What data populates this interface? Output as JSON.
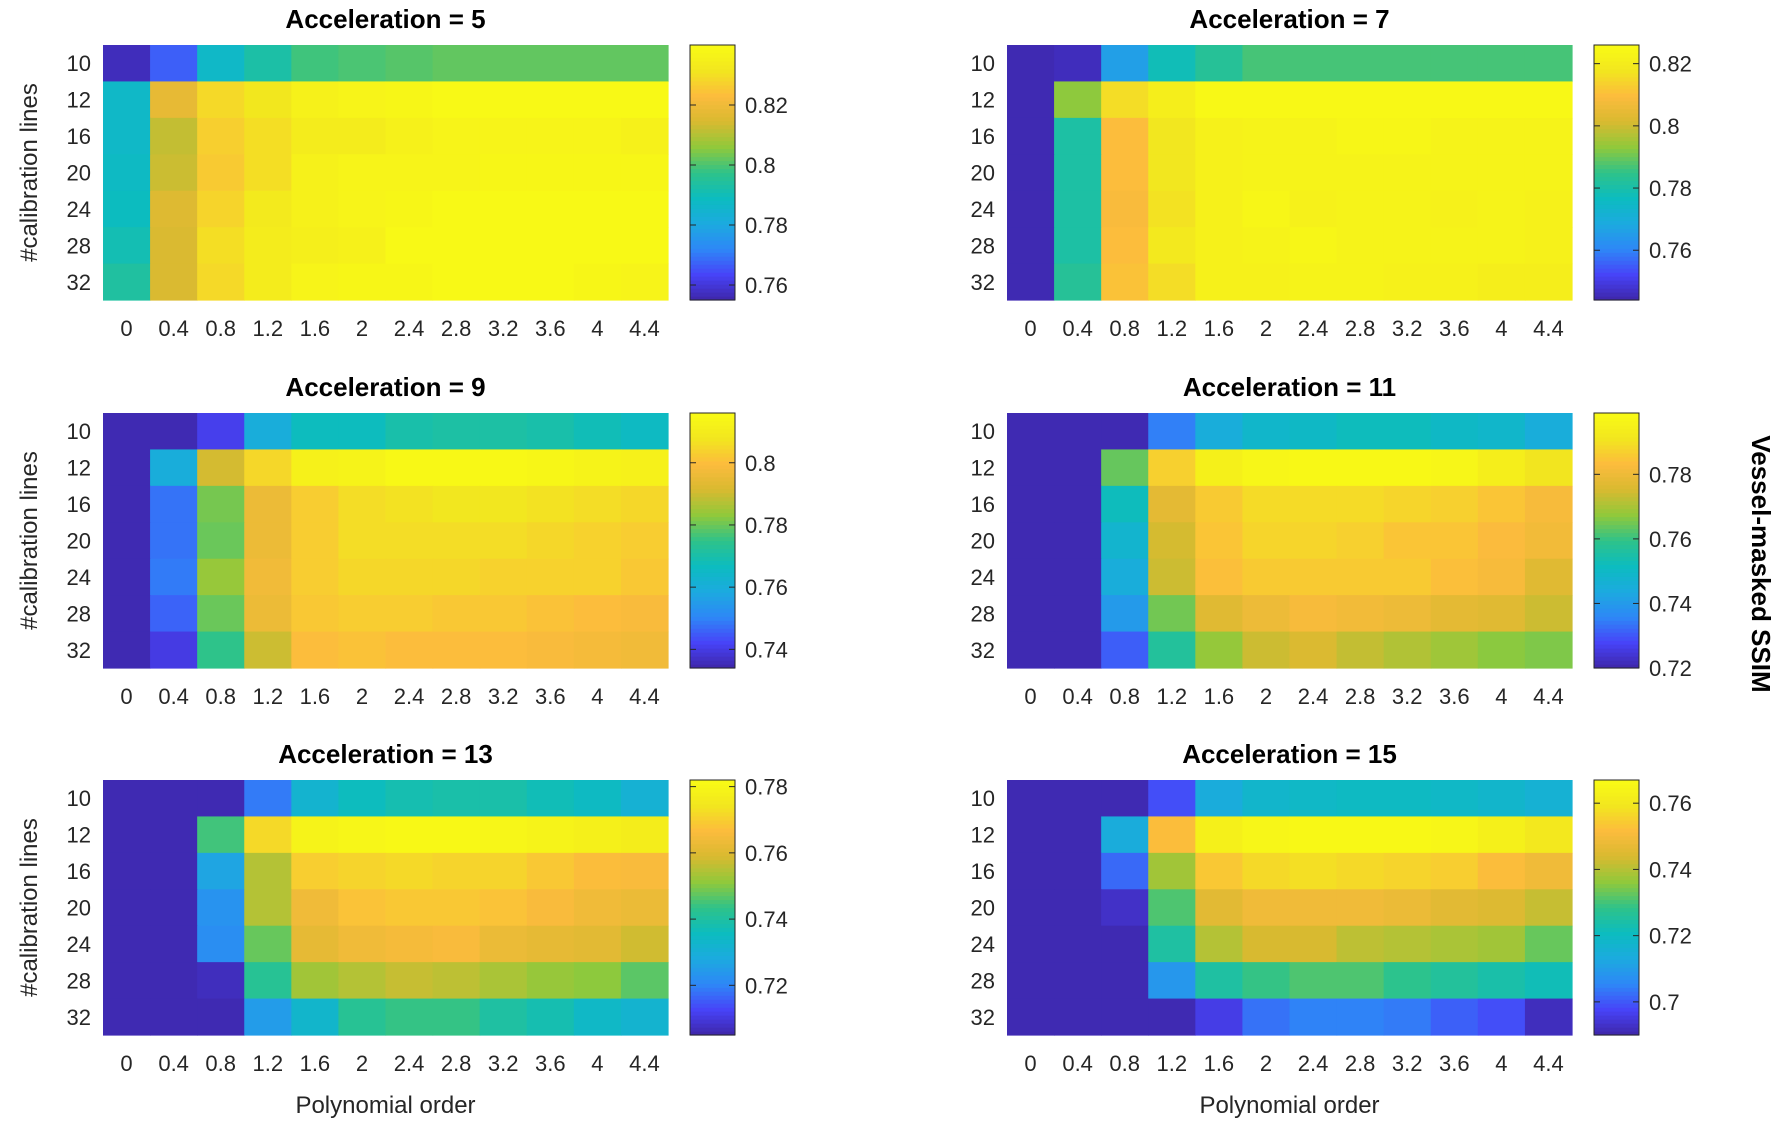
{
  "figure": {
    "colorbar_label": "Vessel-masked SSIM",
    "colormap": [
      "#3e26a8",
      "#4743f8",
      "#2e87f7",
      "#1caadf",
      "#0cbcbf",
      "#2ec38a",
      "#90c93b",
      "#d8ba30",
      "#fcbb3d",
      "#f2e61f",
      "#f9fb15"
    ]
  },
  "chart_data": [
    {
      "type": "heatmap",
      "title": "Acceleration = 5",
      "xlabel": "",
      "ylabel": "#calibration lines",
      "x_ticks": [
        "0",
        "0.4",
        "0.8",
        "1.2",
        "1.6",
        "2",
        "2.4",
        "2.8",
        "3.2",
        "3.6",
        "4",
        "4.4"
      ],
      "y_ticks": [
        "10",
        "12",
        "16",
        "20",
        "24",
        "28",
        "32"
      ],
      "clim": [
        0.755,
        0.84
      ],
      "colorbar_ticks": [
        0.76,
        0.78,
        0.8,
        0.82
      ],
      "colorbar_tick_labels": [
        "0.76",
        "0.78",
        "0.8",
        "0.82"
      ],
      "values": [
        [
          0.757,
          0.767,
          0.787,
          0.793,
          0.799,
          0.8,
          0.801,
          0.802,
          0.802,
          0.802,
          0.802,
          0.802
        ],
        [
          0.787,
          0.818,
          0.829,
          0.832,
          0.836,
          0.837,
          0.838,
          0.839,
          0.839,
          0.839,
          0.839,
          0.839
        ],
        [
          0.787,
          0.812,
          0.827,
          0.83,
          0.834,
          0.834,
          0.836,
          0.837,
          0.837,
          0.837,
          0.837,
          0.836
        ],
        [
          0.788,
          0.813,
          0.826,
          0.83,
          0.836,
          0.837,
          0.837,
          0.837,
          0.838,
          0.838,
          0.838,
          0.838
        ],
        [
          0.789,
          0.816,
          0.828,
          0.833,
          0.836,
          0.837,
          0.838,
          0.839,
          0.839,
          0.839,
          0.839,
          0.839
        ],
        [
          0.791,
          0.815,
          0.83,
          0.834,
          0.835,
          0.836,
          0.839,
          0.839,
          0.839,
          0.839,
          0.839,
          0.839
        ],
        [
          0.794,
          0.815,
          0.829,
          0.834,
          0.837,
          0.838,
          0.838,
          0.839,
          0.839,
          0.839,
          0.838,
          0.837
        ]
      ]
    },
    {
      "type": "heatmap",
      "title": "Acceleration = 7",
      "xlabel": "",
      "ylabel": "",
      "x_ticks": [
        "0",
        "0.4",
        "0.8",
        "1.2",
        "1.6",
        "2",
        "2.4",
        "2.8",
        "3.2",
        "3.6",
        "4",
        "4.4"
      ],
      "y_ticks": [
        "10",
        "12",
        "16",
        "20",
        "24",
        "28",
        "32"
      ],
      "clim": [
        0.744,
        0.826
      ],
      "colorbar_ticks": [
        0.76,
        0.78,
        0.8,
        0.82
      ],
      "colorbar_tick_labels": [
        "0.76",
        "0.78",
        "0.8",
        "0.82"
      ],
      "values": [
        [
          0.745,
          0.746,
          0.766,
          0.778,
          0.783,
          0.787,
          0.787,
          0.787,
          0.787,
          0.787,
          0.787,
          0.787
        ],
        [
          0.745,
          0.793,
          0.816,
          0.821,
          0.825,
          0.825,
          0.825,
          0.825,
          0.825,
          0.825,
          0.825,
          0.825
        ],
        [
          0.745,
          0.781,
          0.81,
          0.818,
          0.822,
          0.823,
          0.823,
          0.824,
          0.824,
          0.823,
          0.823,
          0.823
        ],
        [
          0.745,
          0.781,
          0.81,
          0.818,
          0.822,
          0.823,
          0.823,
          0.823,
          0.823,
          0.823,
          0.823,
          0.823
        ],
        [
          0.745,
          0.781,
          0.809,
          0.817,
          0.822,
          0.824,
          0.822,
          0.823,
          0.823,
          0.822,
          0.823,
          0.822
        ],
        [
          0.745,
          0.781,
          0.81,
          0.819,
          0.822,
          0.823,
          0.824,
          0.823,
          0.823,
          0.823,
          0.823,
          0.822
        ],
        [
          0.745,
          0.783,
          0.811,
          0.816,
          0.822,
          0.822,
          0.823,
          0.823,
          0.822,
          0.822,
          0.821,
          0.821
        ]
      ]
    },
    {
      "type": "heatmap",
      "title": "Acceleration = 9",
      "xlabel": "",
      "ylabel": "#calibration lines",
      "x_ticks": [
        "0",
        "0.4",
        "0.8",
        "1.2",
        "1.6",
        "2",
        "2.4",
        "2.8",
        "3.2",
        "3.6",
        "4",
        "4.4"
      ],
      "y_ticks": [
        "10",
        "12",
        "16",
        "20",
        "24",
        "28",
        "32"
      ],
      "clim": [
        0.734,
        0.816
      ],
      "colorbar_ticks": [
        0.74,
        0.76,
        0.78,
        0.8
      ],
      "colorbar_tick_labels": [
        "0.74",
        "0.76",
        "0.78",
        "0.8"
      ],
      "values": [
        [
          0.735,
          0.735,
          0.741,
          0.76,
          0.767,
          0.767,
          0.77,
          0.771,
          0.771,
          0.77,
          0.768,
          0.766
        ],
        [
          0.735,
          0.76,
          0.791,
          0.805,
          0.812,
          0.813,
          0.815,
          0.815,
          0.815,
          0.814,
          0.813,
          0.812
        ],
        [
          0.735,
          0.748,
          0.781,
          0.796,
          0.803,
          0.806,
          0.807,
          0.808,
          0.808,
          0.807,
          0.806,
          0.805
        ],
        [
          0.735,
          0.748,
          0.78,
          0.796,
          0.803,
          0.806,
          0.806,
          0.806,
          0.806,
          0.805,
          0.804,
          0.803
        ],
        [
          0.735,
          0.749,
          0.784,
          0.797,
          0.803,
          0.805,
          0.805,
          0.805,
          0.804,
          0.804,
          0.804,
          0.802
        ],
        [
          0.735,
          0.746,
          0.78,
          0.796,
          0.802,
          0.803,
          0.803,
          0.802,
          0.802,
          0.801,
          0.8,
          0.799
        ],
        [
          0.735,
          0.74,
          0.775,
          0.79,
          0.8,
          0.801,
          0.8,
          0.8,
          0.8,
          0.799,
          0.798,
          0.797
        ]
      ]
    },
    {
      "type": "heatmap",
      "title": "Acceleration = 11",
      "xlabel": "",
      "ylabel": "",
      "x_ticks": [
        "0",
        "0.4",
        "0.8",
        "1.2",
        "1.6",
        "2",
        "2.4",
        "2.8",
        "3.2",
        "3.6",
        "4",
        "4.4"
      ],
      "y_ticks": [
        "10",
        "12",
        "16",
        "20",
        "24",
        "28",
        "32"
      ],
      "clim": [
        0.72,
        0.799
      ],
      "colorbar_ticks": [
        0.72,
        0.74,
        0.76,
        0.78
      ],
      "colorbar_tick_labels": [
        "0.72",
        "0.74",
        "0.76",
        "0.78"
      ],
      "values": [
        [
          0.721,
          0.721,
          0.721,
          0.735,
          0.745,
          0.749,
          0.75,
          0.752,
          0.752,
          0.75,
          0.749,
          0.745
        ],
        [
          0.721,
          0.721,
          0.764,
          0.787,
          0.795,
          0.797,
          0.798,
          0.798,
          0.798,
          0.797,
          0.794,
          0.791
        ],
        [
          0.721,
          0.721,
          0.752,
          0.778,
          0.786,
          0.789,
          0.789,
          0.789,
          0.788,
          0.787,
          0.785,
          0.782
        ],
        [
          0.721,
          0.721,
          0.748,
          0.775,
          0.785,
          0.788,
          0.788,
          0.787,
          0.785,
          0.785,
          0.783,
          0.781
        ],
        [
          0.721,
          0.721,
          0.745,
          0.774,
          0.784,
          0.786,
          0.786,
          0.786,
          0.786,
          0.784,
          0.782,
          0.777
        ],
        [
          0.721,
          0.721,
          0.74,
          0.765,
          0.777,
          0.78,
          0.782,
          0.781,
          0.78,
          0.778,
          0.777,
          0.774
        ],
        [
          0.721,
          0.721,
          0.731,
          0.757,
          0.768,
          0.774,
          0.776,
          0.773,
          0.771,
          0.769,
          0.767,
          0.766
        ]
      ]
    },
    {
      "type": "heatmap",
      "title": "Acceleration = 13",
      "xlabel": "Polynomial order",
      "ylabel": "#calibration lines",
      "x_ticks": [
        "0",
        "0.4",
        "0.8",
        "1.2",
        "1.6",
        "2",
        "2.4",
        "2.8",
        "3.2",
        "3.6",
        "4",
        "4.4"
      ],
      "y_ticks": [
        "10",
        "12",
        "16",
        "20",
        "24",
        "28",
        "32"
      ],
      "clim": [
        0.705,
        0.782
      ],
      "colorbar_ticks": [
        0.72,
        0.74,
        0.76,
        0.78
      ],
      "colorbar_tick_labels": [
        "0.72",
        "0.74",
        "0.76",
        "0.78"
      ],
      "values": [
        [
          0.706,
          0.706,
          0.706,
          0.719,
          0.732,
          0.736,
          0.738,
          0.739,
          0.739,
          0.737,
          0.735,
          0.731
        ],
        [
          0.706,
          0.706,
          0.745,
          0.772,
          0.779,
          0.78,
          0.781,
          0.781,
          0.78,
          0.779,
          0.778,
          0.777
        ],
        [
          0.706,
          0.706,
          0.727,
          0.755,
          0.77,
          0.771,
          0.772,
          0.771,
          0.771,
          0.769,
          0.767,
          0.766
        ],
        [
          0.706,
          0.706,
          0.723,
          0.755,
          0.764,
          0.768,
          0.769,
          0.769,
          0.768,
          0.766,
          0.764,
          0.763
        ],
        [
          0.706,
          0.706,
          0.722,
          0.748,
          0.762,
          0.764,
          0.765,
          0.766,
          0.763,
          0.762,
          0.761,
          0.758
        ],
        [
          0.706,
          0.706,
          0.707,
          0.742,
          0.753,
          0.755,
          0.757,
          0.756,
          0.754,
          0.752,
          0.751,
          0.747
        ],
        [
          0.706,
          0.706,
          0.706,
          0.725,
          0.733,
          0.742,
          0.744,
          0.744,
          0.74,
          0.738,
          0.734,
          0.732
        ]
      ]
    },
    {
      "type": "heatmap",
      "title": "Acceleration = 15",
      "xlabel": "Polynomial order",
      "ylabel": "",
      "x_ticks": [
        "0",
        "0.4",
        "0.8",
        "1.2",
        "1.6",
        "2",
        "2.4",
        "2.8",
        "3.2",
        "3.6",
        "4",
        "4.4"
      ],
      "y_ticks": [
        "10",
        "12",
        "16",
        "20",
        "24",
        "28",
        "32"
      ],
      "clim": [
        0.69,
        0.767
      ],
      "colorbar_ticks": [
        0.7,
        0.72,
        0.74,
        0.76
      ],
      "colorbar_tick_labels": [
        "0.7",
        "0.72",
        "0.74",
        "0.76"
      ],
      "values": [
        [
          0.691,
          0.691,
          0.691,
          0.699,
          0.714,
          0.718,
          0.719,
          0.72,
          0.72,
          0.719,
          0.718,
          0.716
        ],
        [
          0.691,
          0.691,
          0.714,
          0.752,
          0.763,
          0.765,
          0.766,
          0.766,
          0.766,
          0.765,
          0.763,
          0.76
        ],
        [
          0.691,
          0.691,
          0.702,
          0.738,
          0.754,
          0.757,
          0.758,
          0.757,
          0.756,
          0.755,
          0.752,
          0.749
        ],
        [
          0.691,
          0.691,
          0.693,
          0.731,
          0.746,
          0.749,
          0.749,
          0.749,
          0.748,
          0.746,
          0.745,
          0.742
        ],
        [
          0.691,
          0.691,
          0.691,
          0.725,
          0.74,
          0.744,
          0.744,
          0.741,
          0.74,
          0.739,
          0.738,
          0.733
        ],
        [
          0.691,
          0.691,
          0.691,
          0.709,
          0.725,
          0.729,
          0.731,
          0.731,
          0.728,
          0.726,
          0.724,
          0.722
        ],
        [
          0.691,
          0.691,
          0.691,
          0.691,
          0.696,
          0.703,
          0.705,
          0.705,
          0.704,
          0.701,
          0.699,
          0.692
        ]
      ]
    }
  ]
}
